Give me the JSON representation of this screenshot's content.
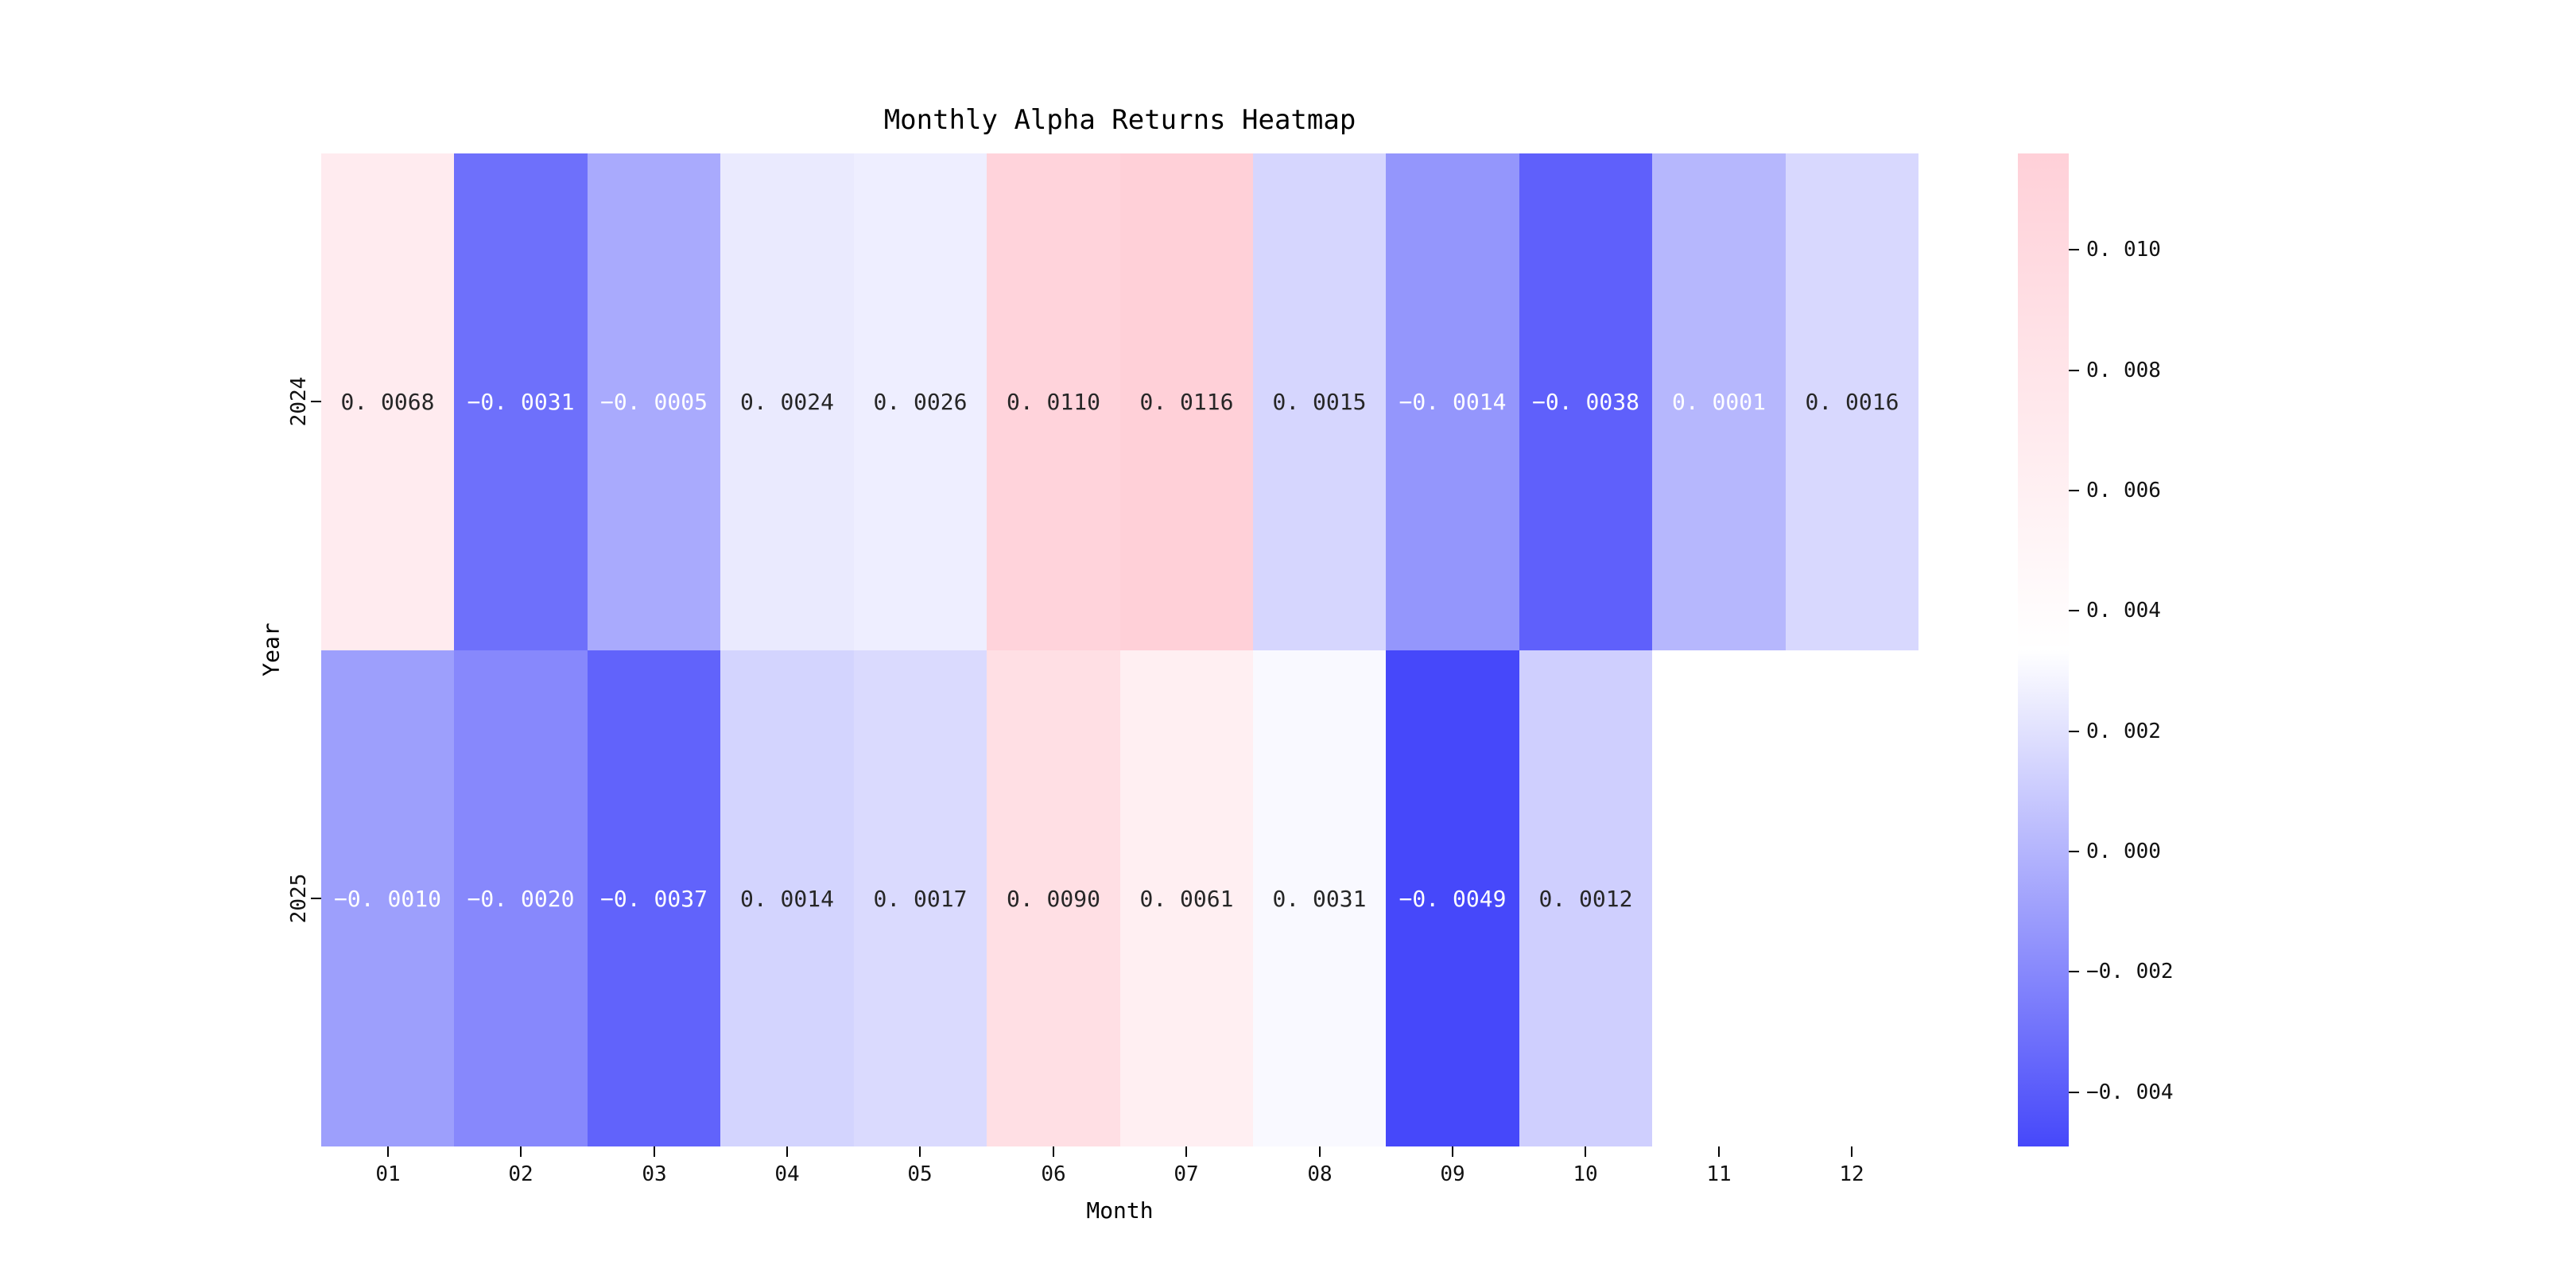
{
  "chart": {
    "title": "Monthly Alpha Returns Heatmap",
    "xlabel": "Month",
    "ylabel": "Year"
  },
  "chart_data": {
    "type": "heatmap",
    "title": "Monthly Alpha Returns Heatmap",
    "xlabel": "Month",
    "ylabel": "Year",
    "x_categories": [
      "01",
      "02",
      "03",
      "04",
      "05",
      "06",
      "07",
      "08",
      "09",
      "10",
      "11",
      "12"
    ],
    "y_categories": [
      "2024",
      "2025"
    ],
    "series": [
      {
        "name": "2024",
        "values": [
          0.0068,
          -0.0031,
          -0.0005,
          0.0024,
          0.0026,
          0.011,
          0.0116,
          0.0015,
          -0.0014,
          -0.0038,
          0.0001,
          0.0016
        ]
      },
      {
        "name": "2025",
        "values": [
          -0.001,
          -0.002,
          -0.0037,
          0.0014,
          0.0017,
          0.009,
          0.0061,
          0.0031,
          -0.0049,
          0.0012,
          null,
          null
        ]
      }
    ],
    "vmin": -0.0049,
    "vmax": 0.0116,
    "annot_decimals": 4,
    "colorbar_ticks": [
      0.01,
      0.008,
      0.006,
      0.004,
      0.002,
      0.0,
      -0.002,
      -0.004
    ],
    "colorbar_tick_decimals": 3,
    "legend_position": "right-colorbar",
    "grid": false,
    "colors": {
      "negative_end": "#4648fa",
      "midpoint": "#ffffff",
      "positive_end": "#ffd0d8",
      "annot_dark": "#262626",
      "annot_light": "#ffffff",
      "missing_cell": "#ffffff",
      "background": "#ffffff"
    }
  }
}
